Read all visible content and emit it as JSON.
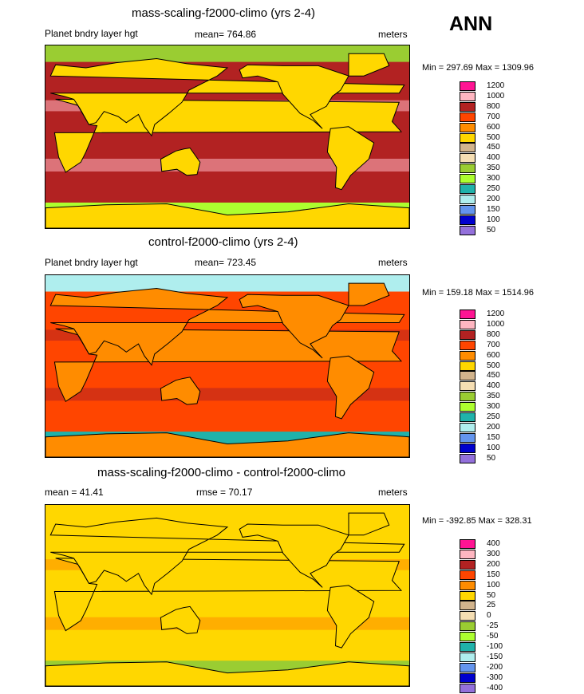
{
  "season": "ANN",
  "panels": [
    {
      "title": "mass-scaling-f2000-climo (yrs 2-4)",
      "left_text": "Planet bndry layer hgt",
      "center_text": "mean= 764.86",
      "units": "meters",
      "minmax": "Min = 297.69 Max = 1309.96",
      "levels": [
        "1200",
        "1000",
        "800",
        "700",
        "600",
        "500",
        "450",
        "400",
        "350",
        "300",
        "250",
        "200",
        "150",
        "100",
        "50"
      ],
      "colors": [
        "#ff1493",
        "#ffb6c1",
        "#b22222",
        "#ff4500",
        "#ff8c00",
        "#ffd700",
        "#d2b48c",
        "#f5deb3",
        "#9acd32",
        "#adff2f",
        "#20b2aa",
        "#afeeee",
        "#6495ed",
        "#0000cd",
        "#9370db"
      ],
      "fill_levels": {
        "land": 5,
        "ocean": 2,
        "polar_north": 8,
        "polar_south": 9
      }
    },
    {
      "title": "control-f2000-climo (yrs 2-4)",
      "left_text": "Planet bndry layer hgt",
      "center_text": "mean= 723.45",
      "units": "meters",
      "minmax": "Min = 159.18 Max = 1514.96",
      "levels": [
        "1200",
        "1000",
        "800",
        "700",
        "600",
        "500",
        "450",
        "400",
        "350",
        "300",
        "250",
        "200",
        "150",
        "100",
        "50"
      ],
      "colors": [
        "#ff1493",
        "#ffb6c1",
        "#b22222",
        "#ff4500",
        "#ff8c00",
        "#ffd700",
        "#d2b48c",
        "#f5deb3",
        "#9acd32",
        "#adff2f",
        "#20b2aa",
        "#afeeee",
        "#6495ed",
        "#0000cd",
        "#9370db"
      ],
      "fill_levels": {
        "land": 4,
        "ocean": 3,
        "polar_north": 11,
        "polar_south": 10
      }
    },
    {
      "title": "mass-scaling-f2000-climo - control-f2000-climo",
      "left_text": "mean =  41.41",
      "center_text": "rmse =  70.17",
      "units": "meters",
      "minmax": "Min = -392.85 Max = 328.31",
      "levels": [
        "400",
        "300",
        "200",
        "150",
        "100",
        "50",
        "25",
        "0",
        "-25",
        "-50",
        "-100",
        "-150",
        "-200",
        "-300",
        "-400"
      ],
      "colors": [
        "#ff1493",
        "#ffb6c1",
        "#b22222",
        "#ff4500",
        "#ff8c00",
        "#ffd700",
        "#d2b48c",
        "#f5deb3",
        "#9acd32",
        "#adff2f",
        "#20b2aa",
        "#afeeee",
        "#6495ed",
        "#0000cd",
        "#9370db"
      ],
      "fill_levels": {
        "land": 5,
        "ocean": 5,
        "polar_north": 5,
        "polar_south": 8
      }
    }
  ]
}
